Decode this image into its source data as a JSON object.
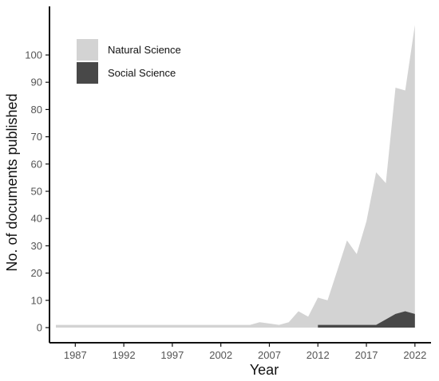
{
  "chart_data": {
    "type": "area",
    "title": "",
    "xlabel": "Year",
    "ylabel": "No. of documents published",
    "xlim": [
      1985,
      2023
    ],
    "ylim": [
      0,
      112
    ],
    "x_ticks": [
      1987,
      1992,
      1997,
      2002,
      2007,
      2012,
      2017,
      2022
    ],
    "y_ticks": [
      0,
      10,
      20,
      30,
      40,
      50,
      60,
      70,
      80,
      90,
      100
    ],
    "grid": false,
    "legend_position": "top-left",
    "series": [
      {
        "name": "Natural Science",
        "color": "#d3d3d3",
        "x": [
          1985,
          1986,
          1987,
          1988,
          1989,
          1990,
          1991,
          1992,
          1993,
          1994,
          1995,
          1996,
          1997,
          1998,
          1999,
          2000,
          2001,
          2002,
          2003,
          2004,
          2005,
          2006,
          2007,
          2008,
          2009,
          2010,
          2011,
          2012,
          2013,
          2014,
          2015,
          2016,
          2017,
          2018,
          2019,
          2020,
          2021,
          2022
        ],
        "values": [
          1,
          1,
          1,
          1,
          1,
          1,
          1,
          1,
          1,
          1,
          1,
          1,
          1,
          1,
          1,
          1,
          1,
          1,
          1,
          1,
          1,
          2,
          1.5,
          1,
          2,
          6,
          4,
          11,
          10,
          21,
          32,
          27,
          39,
          57,
          53,
          88,
          87,
          111
        ]
      },
      {
        "name": "Social Science",
        "color": "#484848",
        "x": [
          2012,
          2013,
          2014,
          2015,
          2016,
          2017,
          2018,
          2019,
          2020,
          2021,
          2022
        ],
        "values": [
          1,
          1,
          1,
          1,
          1,
          1,
          1,
          3,
          5,
          6,
          5
        ]
      }
    ]
  }
}
